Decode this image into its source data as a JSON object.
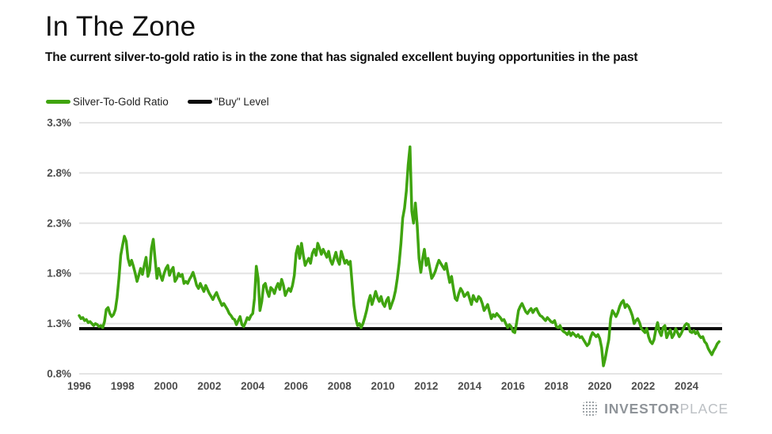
{
  "header": {
    "title": "In The Zone",
    "subtitle": "The current silver-to-gold ratio is in the zone that has signaled excellent buying opportunities in the past"
  },
  "legend": [
    {
      "label": "Silver-To-Gold Ratio",
      "color": "#3fa40f"
    },
    {
      "label": "\"Buy\" Level",
      "color": "#0a0a0a"
    }
  ],
  "footer": {
    "brand_bold": "INVESTOR",
    "brand_light": "PLACE"
  },
  "colors": {
    "series_green": "#3fa40f",
    "buy_line_black": "#0a0a0a",
    "gridline": "#e4e4e4",
    "axis_text": "#4d4d4d"
  },
  "chart_data": {
    "type": "line",
    "title": "In The Zone",
    "xlabel": "",
    "ylabel": "",
    "grid": "horizontal",
    "legend_position": "top-left",
    "xlim": [
      1996,
      2025.64
    ],
    "ylim": [
      0.8,
      3.3
    ],
    "x_ticks": [
      1996,
      1998,
      2000,
      2002,
      2004,
      2006,
      2008,
      2010,
      2012,
      2014,
      2016,
      2018,
      2020,
      2022,
      2024
    ],
    "y_ticks": [
      3.3,
      2.8,
      2.3,
      1.8,
      1.3,
      0.8
    ],
    "y_tick_suffix": "%",
    "buy_level": 1.25,
    "series": [
      {
        "name": "Silver-To-Gold Ratio",
        "x_start": 1996.0,
        "x_step": 0.0833333,
        "values": [
          1.38,
          1.35,
          1.36,
          1.33,
          1.34,
          1.31,
          1.32,
          1.3,
          1.28,
          1.3,
          1.29,
          1.27,
          1.28,
          1.26,
          1.32,
          1.44,
          1.46,
          1.4,
          1.37,
          1.39,
          1.44,
          1.56,
          1.75,
          1.98,
          2.08,
          2.17,
          2.12,
          1.95,
          1.88,
          1.93,
          1.87,
          1.8,
          1.72,
          1.78,
          1.85,
          1.79,
          1.88,
          1.96,
          1.77,
          1.83,
          2.05,
          2.14,
          1.94,
          1.75,
          1.85,
          1.78,
          1.73,
          1.8,
          1.85,
          1.88,
          1.78,
          1.83,
          1.86,
          1.72,
          1.75,
          1.8,
          1.77,
          1.79,
          1.7,
          1.72,
          1.7,
          1.74,
          1.77,
          1.81,
          1.75,
          1.68,
          1.65,
          1.7,
          1.66,
          1.62,
          1.68,
          1.64,
          1.6,
          1.57,
          1.54,
          1.58,
          1.61,
          1.56,
          1.52,
          1.48,
          1.5,
          1.47,
          1.44,
          1.4,
          1.38,
          1.35,
          1.34,
          1.29,
          1.33,
          1.37,
          1.29,
          1.27,
          1.31,
          1.36,
          1.34,
          1.38,
          1.4,
          1.55,
          1.87,
          1.75,
          1.43,
          1.52,
          1.68,
          1.7,
          1.62,
          1.57,
          1.66,
          1.64,
          1.6,
          1.66,
          1.7,
          1.64,
          1.74,
          1.68,
          1.58,
          1.62,
          1.65,
          1.62,
          1.68,
          1.78,
          2.0,
          2.07,
          1.95,
          2.1,
          1.98,
          1.88,
          1.92,
          1.95,
          1.9,
          2.0,
          2.04,
          1.98,
          2.1,
          2.05,
          1.99,
          2.04,
          2.0,
          1.96,
          2.02,
          1.93,
          1.89,
          1.95,
          2.01,
          1.93,
          1.89,
          2.02,
          1.96,
          1.9,
          1.93,
          1.89,
          1.92,
          1.7,
          1.48,
          1.35,
          1.28,
          1.3,
          1.26,
          1.3,
          1.36,
          1.43,
          1.52,
          1.58,
          1.49,
          1.55,
          1.62,
          1.56,
          1.52,
          1.57,
          1.5,
          1.47,
          1.53,
          1.56,
          1.45,
          1.5,
          1.55,
          1.63,
          1.75,
          1.9,
          2.1,
          2.35,
          2.45,
          2.62,
          2.88,
          3.06,
          2.42,
          2.3,
          2.5,
          2.28,
          1.95,
          1.81,
          1.95,
          2.04,
          1.88,
          1.95,
          1.85,
          1.75,
          1.78,
          1.82,
          1.88,
          1.93,
          1.9,
          1.87,
          1.84,
          1.9,
          1.8,
          1.71,
          1.77,
          1.65,
          1.55,
          1.53,
          1.6,
          1.65,
          1.62,
          1.57,
          1.59,
          1.61,
          1.55,
          1.49,
          1.58,
          1.54,
          1.52,
          1.57,
          1.55,
          1.5,
          1.43,
          1.46,
          1.49,
          1.42,
          1.35,
          1.39,
          1.37,
          1.4,
          1.38,
          1.36,
          1.33,
          1.34,
          1.3,
          1.26,
          1.29,
          1.27,
          1.22,
          1.21,
          1.31,
          1.43,
          1.47,
          1.5,
          1.46,
          1.42,
          1.4,
          1.43,
          1.45,
          1.41,
          1.44,
          1.45,
          1.41,
          1.38,
          1.37,
          1.35,
          1.33,
          1.36,
          1.34,
          1.32,
          1.31,
          1.33,
          1.27,
          1.26,
          1.28,
          1.24,
          1.22,
          1.21,
          1.19,
          1.22,
          1.18,
          1.21,
          1.19,
          1.17,
          1.19,
          1.16,
          1.17,
          1.14,
          1.11,
          1.08,
          1.1,
          1.17,
          1.21,
          1.19,
          1.17,
          1.19,
          1.15,
          1.06,
          0.88,
          0.95,
          1.05,
          1.14,
          1.35,
          1.43,
          1.4,
          1.37,
          1.41,
          1.47,
          1.51,
          1.53,
          1.46,
          1.49,
          1.47,
          1.43,
          1.38,
          1.3,
          1.33,
          1.35,
          1.31,
          1.25,
          1.23,
          1.21,
          1.25,
          1.17,
          1.12,
          1.1,
          1.14,
          1.24,
          1.31,
          1.22,
          1.18,
          1.26,
          1.28,
          1.16,
          1.2,
          1.24,
          1.16,
          1.19,
          1.25,
          1.21,
          1.17,
          1.2,
          1.24,
          1.28,
          1.3,
          1.29,
          1.22,
          1.21,
          1.23,
          1.2,
          1.22,
          1.18,
          1.16,
          1.17,
          1.12,
          1.1,
          1.05,
          1.02,
          0.99,
          1.03,
          1.06,
          1.1,
          1.12
        ]
      },
      {
        "name": "\"Buy\" Level",
        "type": "hline",
        "value": 1.25
      }
    ]
  }
}
